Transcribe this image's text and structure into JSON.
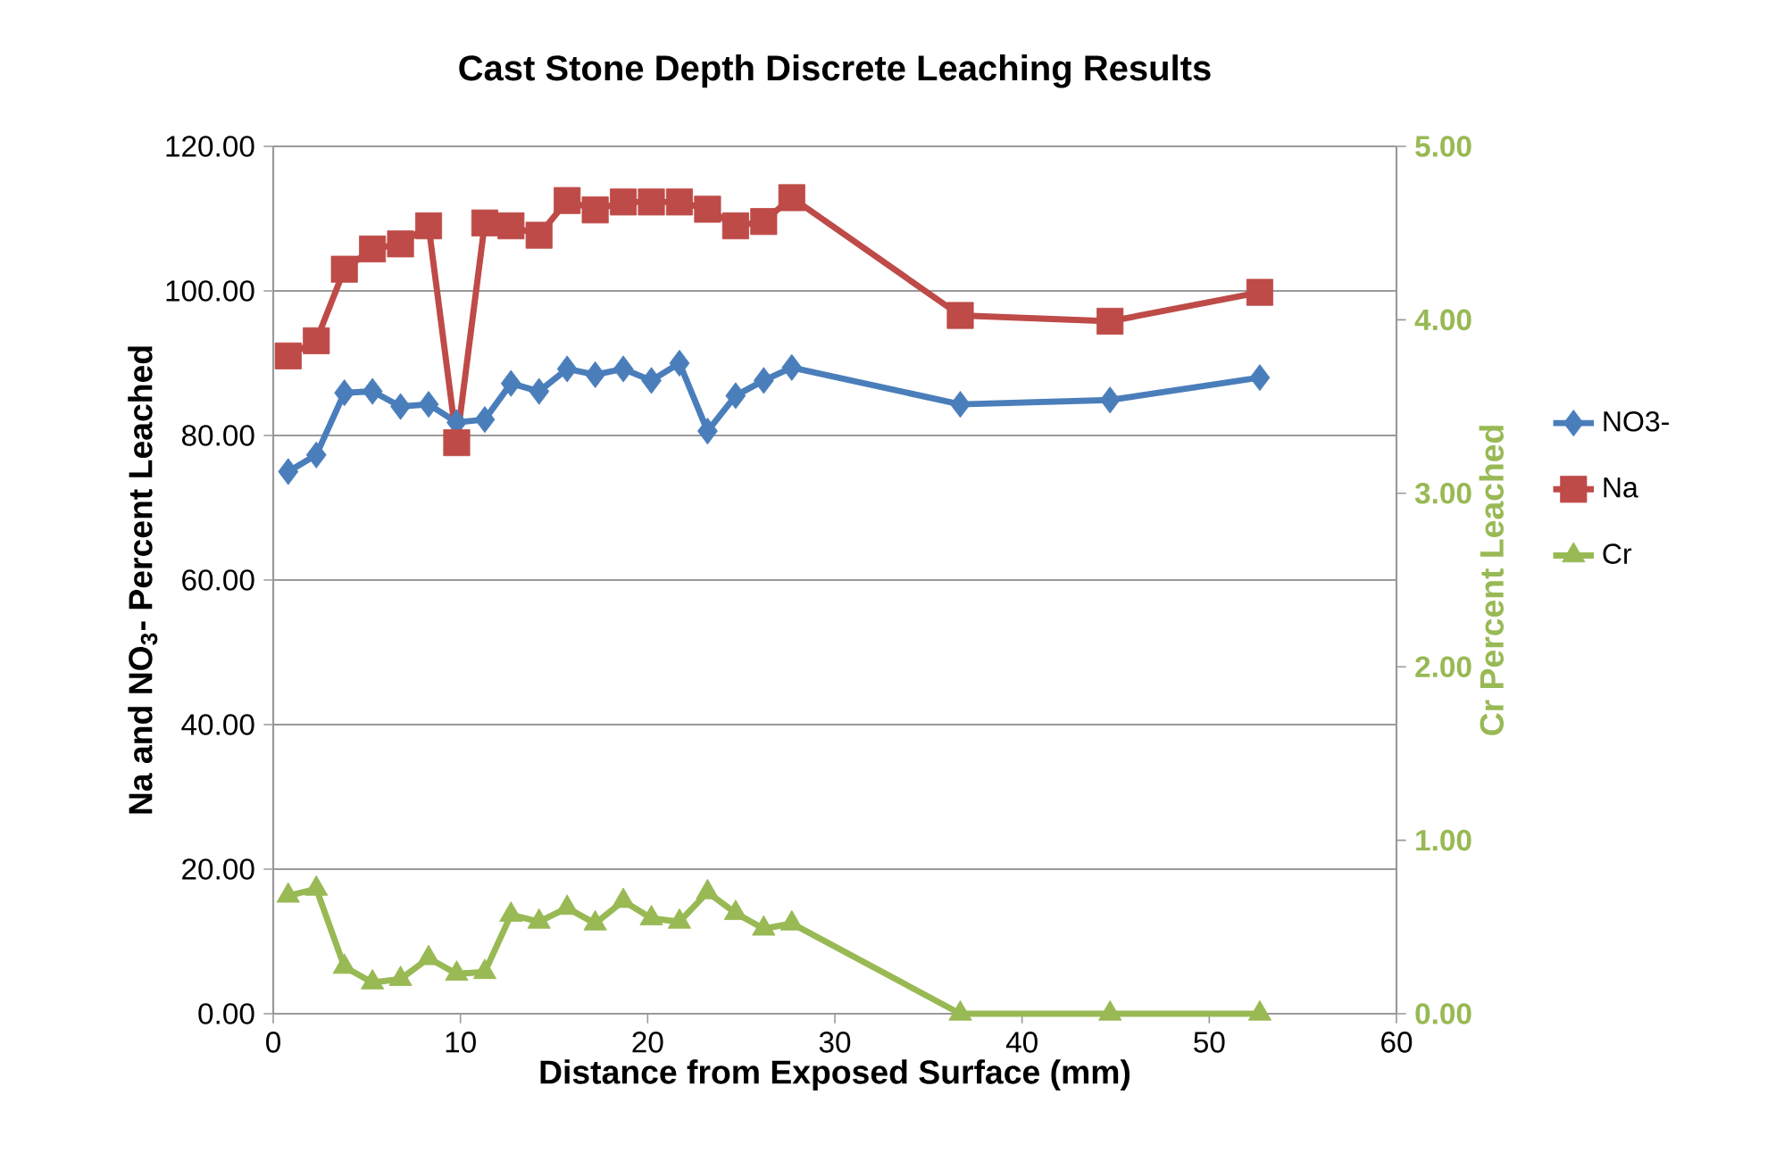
{
  "chart_data": {
    "type": "line",
    "title": "Cast Stone Depth Discrete Leaching Results",
    "xlabel": "Distance from Exposed Surface  (mm)",
    "ylabel": "Na and NO$_{3}$- Percent Leached",
    "y2label": "Cr Percent Leached",
    "x": [
      0.8,
      2.3,
      3.8,
      5.3,
      6.8,
      8.3,
      9.8,
      11.3,
      12.7,
      14.2,
      15.7,
      17.2,
      18.7,
      20.2,
      21.7,
      23.2,
      24.7,
      26.2,
      27.7,
      36.7,
      44.7,
      52.7
    ],
    "series": [
      {
        "name": "NO3-",
        "color": "#4a7ebb",
        "marker": "diamond",
        "values": [
          75.0,
          77.3,
          85.9,
          86.1,
          84.0,
          84.3,
          81.8,
          82.2,
          87.2,
          86.1,
          89.2,
          88.4,
          89.2,
          87.6,
          90.0,
          80.6,
          85.5,
          87.6,
          89.4,
          84.3,
          84.9,
          88.0
        ]
      },
      {
        "name": "Na",
        "color": "#be4b48",
        "marker": "square",
        "values": [
          91.0,
          93.1,
          103.0,
          105.8,
          106.5,
          109.0,
          79.0,
          109.4,
          109.0,
          107.7,
          112.5,
          111.2,
          112.3,
          112.3,
          112.3,
          111.3,
          109.0,
          109.6,
          112.9,
          96.6,
          95.8,
          99.8
        ]
      },
      {
        "name": "Cr",
        "color": "#98b954",
        "marker": "triangle",
        "axis": "y2",
        "values": [
          0.68,
          0.72,
          0.27,
          0.18,
          0.2,
          0.32,
          0.23,
          0.24,
          0.57,
          0.53,
          0.61,
          0.52,
          0.65,
          0.55,
          0.53,
          0.7,
          0.58,
          0.49,
          0.52,
          0.0,
          0.0,
          0.0
        ]
      }
    ],
    "xlim": [
      0,
      60
    ],
    "xticks": [
      0,
      10,
      20,
      30,
      40,
      50,
      60
    ],
    "ylim": [
      0,
      120
    ],
    "yticks": [
      {
        "value": 0,
        "label": "0.00"
      },
      {
        "value": 20,
        "label": "20.00"
      },
      {
        "value": 40,
        "label": "40.00"
      },
      {
        "value": 60,
        "label": "60.00"
      },
      {
        "value": 80,
        "label": "80.00"
      },
      {
        "value": 100,
        "label": "100.00"
      },
      {
        "value": 120,
        "label": "120.00"
      }
    ],
    "y2lim": [
      0,
      5
    ],
    "y2ticks": [
      {
        "value": 0,
        "label": "0.00"
      },
      {
        "value": 1,
        "label": "1.00"
      },
      {
        "value": 2,
        "label": "2.00"
      },
      {
        "value": 3,
        "label": "3.00"
      },
      {
        "value": 4,
        "label": "4.00"
      },
      {
        "value": 5,
        "label": "5.00"
      }
    ],
    "grid": "y",
    "legend": "right",
    "line_style": "solid"
  }
}
